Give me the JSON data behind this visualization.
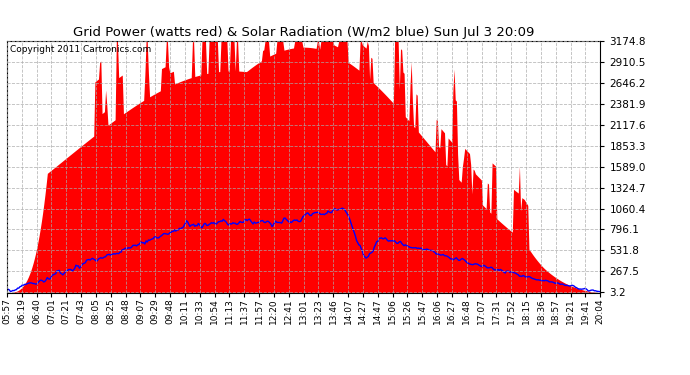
{
  "title": "Grid Power (watts red) & Solar Radiation (W/m2 blue) Sun Jul 3 20:09",
  "copyright": "Copyright 2011 Cartronics.com",
  "yticks": [
    3.2,
    267.5,
    531.8,
    796.1,
    1060.4,
    1324.7,
    1589.0,
    1853.3,
    2117.6,
    2381.9,
    2646.2,
    2910.5,
    3174.8
  ],
  "ymax": 3174.8,
  "ymin": 0,
  "background_color": "#ffffff",
  "plot_bg_color": "#ffffff",
  "grid_color": "#aaaaaa",
  "red_fill_color": "#ff0000",
  "blue_line_color": "#0000ff",
  "xtick_labels": [
    "05:57",
    "06:19",
    "06:40",
    "07:01",
    "07:21",
    "07:43",
    "08:05",
    "08:25",
    "08:48",
    "09:07",
    "09:29",
    "09:48",
    "10:11",
    "10:33",
    "10:54",
    "11:13",
    "11:37",
    "11:57",
    "12:20",
    "12:41",
    "13:01",
    "13:23",
    "13:46",
    "14:07",
    "14:27",
    "14:47",
    "15:06",
    "15:26",
    "15:47",
    "16:06",
    "16:27",
    "16:48",
    "17:07",
    "17:31",
    "17:52",
    "18:15",
    "18:36",
    "18:57",
    "19:21",
    "19:41",
    "20:04"
  ],
  "n_points": 500
}
